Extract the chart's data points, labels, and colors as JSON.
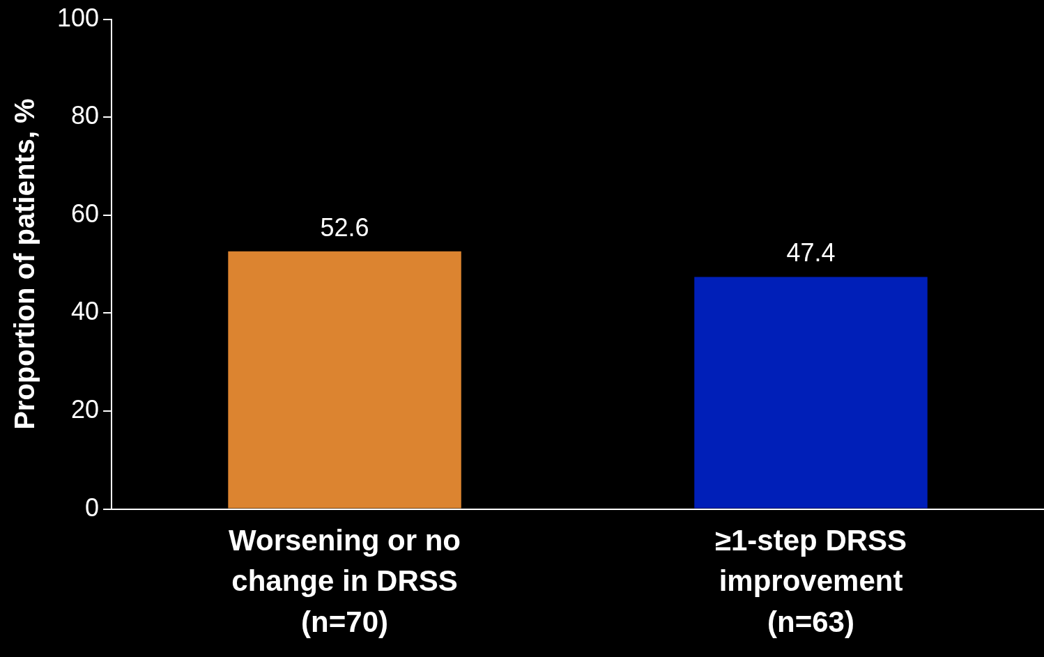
{
  "chart_data": {
    "type": "bar",
    "ylabel": "Proportion of patients, %",
    "categories": [
      "Worsening or no\nchange in DRSS\n(n=70)",
      "≥1-step DRSS\nimprovement\n(n=63)"
    ],
    "values": [
      52.6,
      47.4
    ],
    "colors": [
      "#dc8430",
      "#001fb8"
    ],
    "ylim": [
      0,
      100
    ],
    "yticks": [
      0,
      20,
      40,
      60,
      80,
      100
    ],
    "grid": false,
    "legend": false,
    "data_labels": true
  }
}
